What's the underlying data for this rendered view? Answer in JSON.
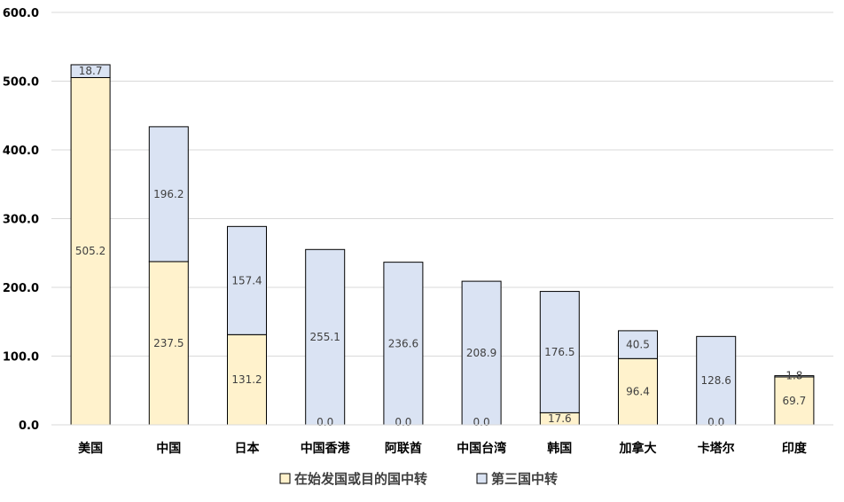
{
  "chart_data": {
    "type": "bar",
    "stacked": true,
    "title": "",
    "xlabel": "",
    "ylabel": "",
    "ylim": [
      0,
      600
    ],
    "yticks": [
      0,
      100,
      200,
      300,
      400,
      500,
      600
    ],
    "ytick_labels": [
      "0.0",
      "100.0",
      "200.0",
      "300.0",
      "400.0",
      "500.0",
      "600.0"
    ],
    "grid": true,
    "legend_position": "bottom",
    "categories": [
      "美国",
      "中国",
      "日本",
      "中国香港",
      "阿联酋",
      "中国台湾",
      "韩国",
      "加拿大",
      "卡塔尔",
      "印度"
    ],
    "series": [
      {
        "name": "在始发国或目的国中转",
        "color": "#FFF2CC",
        "values": [
          505.2,
          237.5,
          131.2,
          0.0,
          0.0,
          0.0,
          17.6,
          96.4,
          0.0,
          69.7
        ],
        "labels": [
          "505.2",
          "237.5",
          "131.2",
          "0.0",
          "0.0",
          "0.0",
          "17.6",
          "96.4",
          "0.0",
          "69.7"
        ]
      },
      {
        "name": "第三国中转",
        "color": "#DAE3F3",
        "values": [
          18.7,
          196.2,
          157.4,
          255.1,
          236.6,
          208.9,
          176.5,
          40.5,
          128.6,
          1.8
        ],
        "labels": [
          "18.7",
          "196.2",
          "157.4",
          "255.1",
          "236.6",
          "208.9",
          "176.5",
          "40.5",
          "128.6",
          "1.8"
        ]
      }
    ]
  }
}
